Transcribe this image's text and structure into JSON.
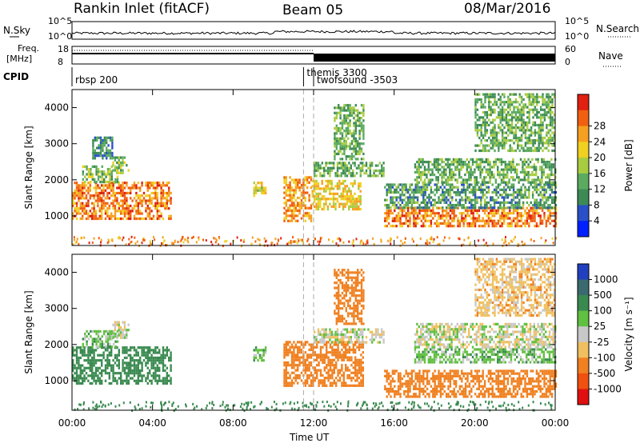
{
  "header": {
    "station": "Rankin Inlet (fitACF)",
    "beam": "Beam 05",
    "date": "08/Mar/2016"
  },
  "top_panel": {
    "left_label": "N.Sky",
    "y_ticks": [
      "10^5",
      "10^0"
    ],
    "right_label": "N.Search",
    "right_ticks": [
      "10^5",
      "10^0"
    ]
  },
  "freq_panel": {
    "left_label_1": "Freq.",
    "left_label_2": "[MHz]",
    "y_ticks": [
      "18",
      "8"
    ],
    "right_label": "Nave",
    "right_ticks": [
      "60",
      "0"
    ]
  },
  "cpid": {
    "label": "CPID",
    "entries": [
      {
        "name": "rbsp 200",
        "hour": 0
      },
      {
        "name": "themis 3300",
        "hour": 11.5
      },
      {
        "name": "twofsound -3503",
        "hour": 12.0
      }
    ]
  },
  "chart_data": [
    {
      "type": "heatmap",
      "name": "power",
      "xlabel": "Time UT",
      "ylabel": "Slant Range [km]",
      "xlim": [
        0,
        24
      ],
      "ylim": [
        180,
        4500
      ],
      "x_ticks": [
        "00:00",
        "04:00",
        "08:00",
        "12:00",
        "16:00",
        "20:00",
        "00:00"
      ],
      "y_ticks": [
        1000,
        2000,
        3000,
        4000
      ],
      "colorbar": {
        "label": "Power [dB]",
        "ticks": [
          4,
          8,
          12,
          16,
          20,
          24,
          28
        ],
        "colors": [
          "#0020ff",
          "#2a50c8",
          "#3d8a55",
          "#5aaa60",
          "#a8cc40",
          "#f0d020",
          "#f5a020",
          "#f06010",
          "#e02010"
        ]
      },
      "regions": [
        {
          "t": [
            0.0,
            4.9
          ],
          "r": [
            950,
            1950
          ],
          "level": 26
        },
        {
          "t": [
            0.5,
            2.3
          ],
          "r": [
            1950,
            2400
          ],
          "level": 14
        },
        {
          "t": [
            2.0,
            2.8
          ],
          "r": [
            2200,
            2650
          ],
          "level": 14
        },
        {
          "t": [
            1.0,
            2.0
          ],
          "r": [
            2600,
            3200
          ],
          "level": 8
        },
        {
          "t": [
            9.0,
            9.6
          ],
          "r": [
            1550,
            1950
          ],
          "level": 18
        },
        {
          "t": [
            10.5,
            11.9
          ],
          "r": [
            850,
            2100
          ],
          "level": 24
        },
        {
          "t": [
            11.9,
            14.3
          ],
          "r": [
            1200,
            2000
          ],
          "level": 20
        },
        {
          "t": [
            12.0,
            15.5
          ],
          "r": [
            2100,
            2500
          ],
          "level": 12
        },
        {
          "t": [
            13.0,
            14.5
          ],
          "r": [
            2600,
            4100
          ],
          "level": 12
        },
        {
          "t": [
            15.5,
            24.0
          ],
          "r": [
            700,
            1250
          ],
          "level": 26
        },
        {
          "t": [
            15.5,
            24.0
          ],
          "r": [
            1250,
            1900
          ],
          "level": 10
        },
        {
          "t": [
            17.0,
            24.0
          ],
          "r": [
            1950,
            2600
          ],
          "level": 12
        },
        {
          "t": [
            20.0,
            24.0
          ],
          "r": [
            2800,
            4400
          ],
          "level": 12
        }
      ]
    },
    {
      "type": "heatmap",
      "name": "velocity",
      "xlabel": "Time UT",
      "ylabel": "Slant Range [km]",
      "xlim": [
        0,
        24
      ],
      "ylim": [
        180,
        4500
      ],
      "x_ticks": [
        "00:00",
        "04:00",
        "08:00",
        "12:00",
        "16:00",
        "20:00",
        "00:00"
      ],
      "y_ticks": [
        1000,
        2000,
        3000,
        4000
      ],
      "colorbar": {
        "label": "Velocity [m s⁻¹]",
        "ticks": [
          "1000",
          "500",
          "100",
          "25",
          "-25",
          "-100",
          "-500",
          "-1000"
        ],
        "colors": [
          "#2040c0",
          "#3a6a70",
          "#3a8a50",
          "#60c040",
          "#c8c8c8",
          "#f0c060",
          "#f08020",
          "#f05010",
          "#e01010"
        ]
      },
      "regions": [
        {
          "t": [
            0.0,
            4.9
          ],
          "r": [
            950,
            1950
          ],
          "level": 200
        },
        {
          "t": [
            0.5,
            2.3
          ],
          "r": [
            1950,
            2400
          ],
          "level": 60
        },
        {
          "t": [
            2.0,
            2.8
          ],
          "r": [
            2200,
            2650
          ],
          "level": 0
        },
        {
          "t": [
            9.0,
            9.6
          ],
          "r": [
            1550,
            1950
          ],
          "level": 60
        },
        {
          "t": [
            10.5,
            14.5
          ],
          "r": [
            850,
            2100
          ],
          "level": -400
        },
        {
          "t": [
            12.0,
            15.5
          ],
          "r": [
            2050,
            2450
          ],
          "level": 0
        },
        {
          "t": [
            13.0,
            14.5
          ],
          "r": [
            2600,
            4100
          ],
          "level": -400
        },
        {
          "t": [
            15.5,
            24.0
          ],
          "r": [
            550,
            1300
          ],
          "level": -400
        },
        {
          "t": [
            17.0,
            24.0
          ],
          "r": [
            1500,
            1900
          ],
          "level": 60
        },
        {
          "t": [
            17.0,
            24.0
          ],
          "r": [
            1950,
            2600
          ],
          "level": 0
        },
        {
          "t": [
            20.0,
            24.0
          ],
          "r": [
            2800,
            4400
          ],
          "level": -60
        }
      ]
    }
  ]
}
